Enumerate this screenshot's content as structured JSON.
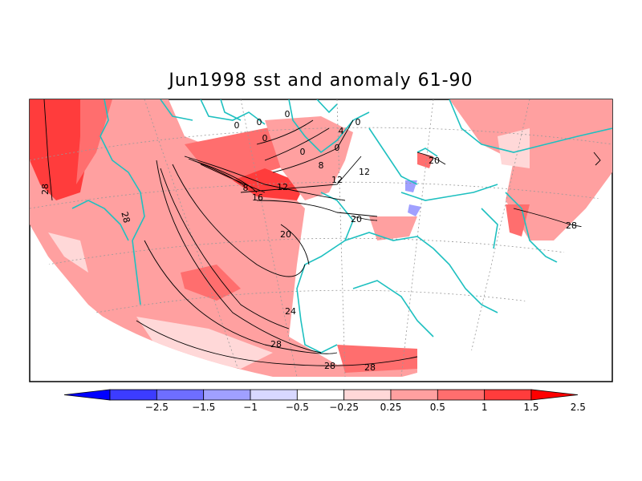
{
  "title": "Jun1998 sst and anomaly 61-90",
  "colorbar": {
    "ticks": [
      "−2.5",
      "−1.5",
      "−1",
      "−0.5",
      "−0.25",
      "0.25",
      "0.5",
      "1",
      "1.5",
      "2.5"
    ],
    "colors": [
      "#0000ff",
      "#3c3cff",
      "#6e6eff",
      "#a0a0ff",
      "#d8d8ff",
      "#ffffff",
      "#ffd8d8",
      "#ffa0a0",
      "#ff6e6e",
      "#ff3c3c",
      "#ff0000"
    ]
  },
  "contour_labels": [
    "0",
    "0",
    "0",
    "0",
    "4",
    "0",
    "0",
    "8",
    "0",
    "8",
    "12",
    "12",
    "12",
    "16",
    "20",
    "20",
    "20",
    "28",
    "28",
    "24",
    "28",
    "28",
    "28",
    "28"
  ],
  "colors": {
    "land_outline": "#1ec0c0",
    "contour": "#000000",
    "frame": "#000000"
  }
}
